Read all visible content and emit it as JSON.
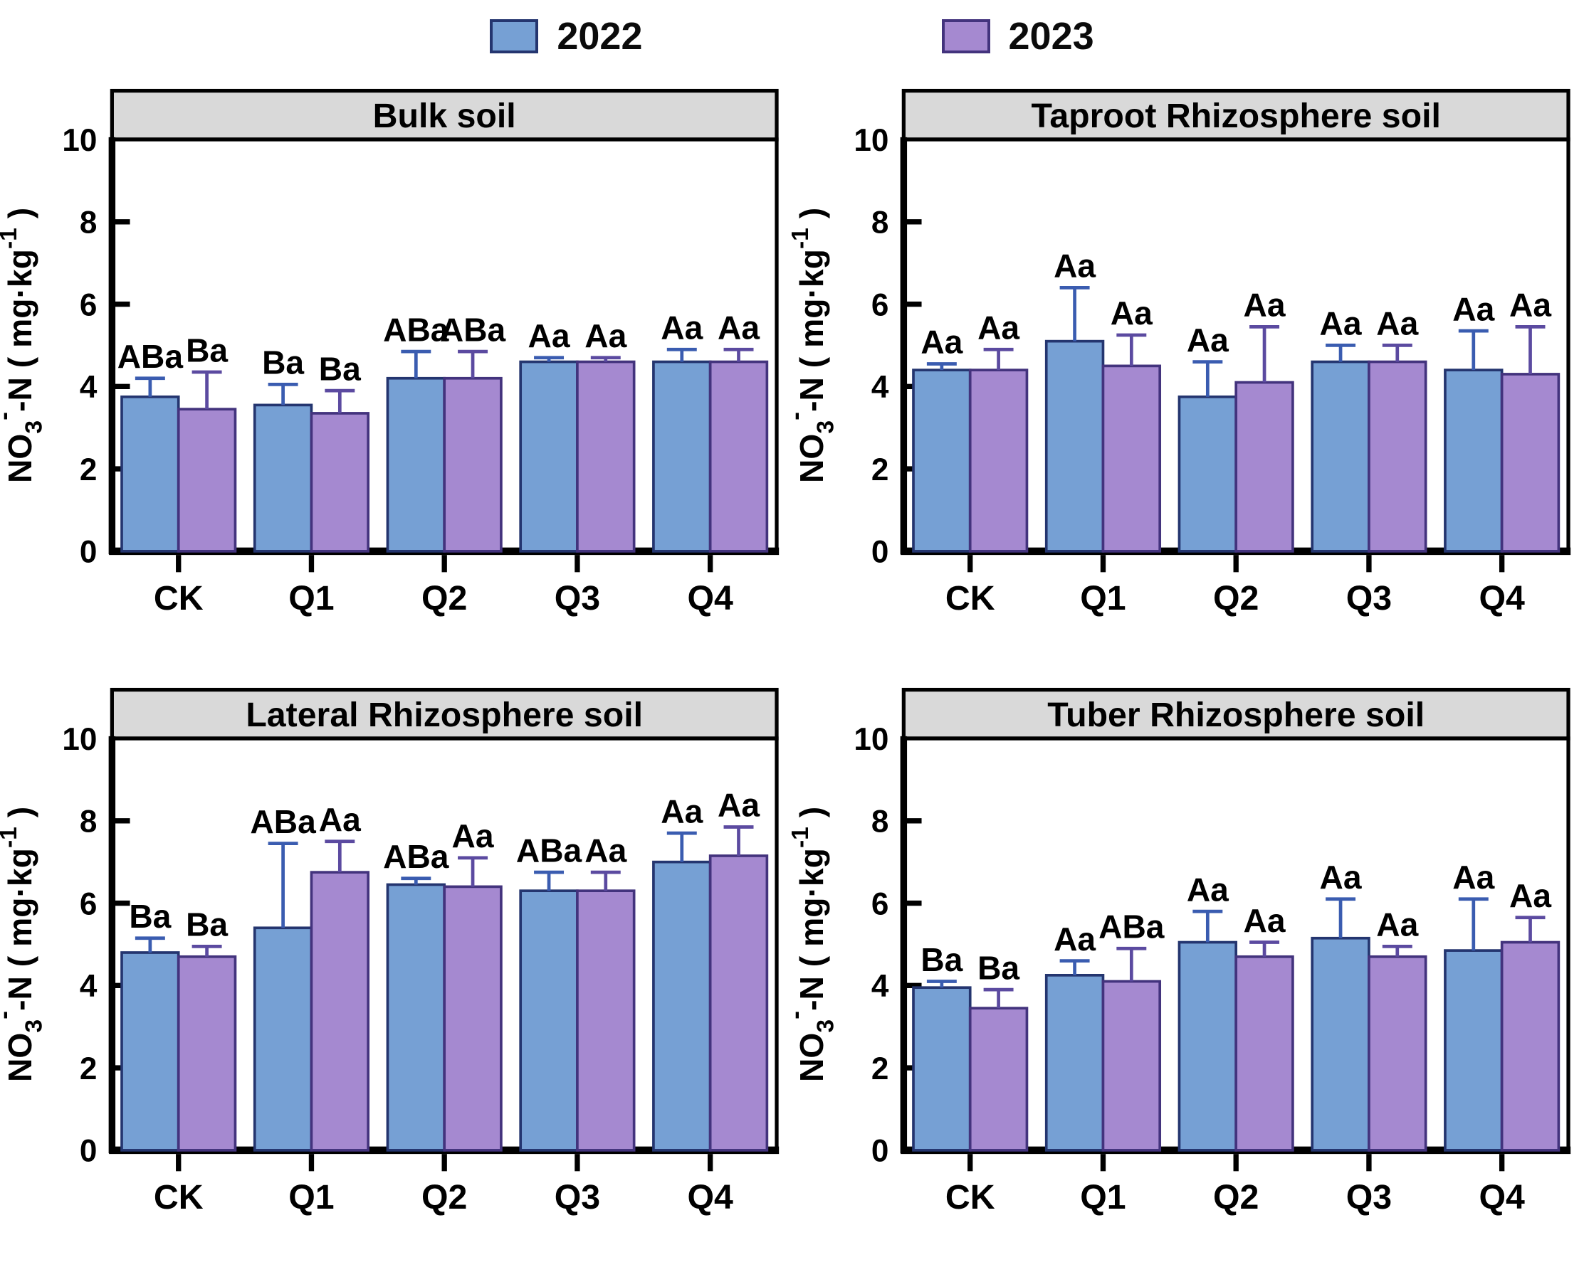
{
  "legend": {
    "items": [
      {
        "label": "2022",
        "color": "#76a0d4",
        "border": "#24356f"
      },
      {
        "label": "2023",
        "color": "#a589d0",
        "border": "#43337d"
      }
    ]
  },
  "style": {
    "bar_2022_fill": "#76a0d4",
    "bar_2022_stroke": "#24356f",
    "bar_2023_fill": "#a589d0",
    "bar_2023_stroke": "#43337d",
    "err_2022": "#3a5cb0",
    "err_2023": "#5b4aa0",
    "panel_strip_fill": "#d9d9d9",
    "frame_color": "#000000",
    "letter_color": "#0b0b0b"
  },
  "ylabel_parts": {
    "base1": "NO",
    "sub": "3",
    "sup1": "-",
    "base2": "-N ( mg·kg",
    "sup2": "-1",
    "base3": " )"
  },
  "chart_data": [
    {
      "type": "bar",
      "title": "Bulk soil",
      "categories": [
        "CK",
        "Q1",
        "Q2",
        "Q3",
        "Q4"
      ],
      "ylabel": "NO3(-)-N (mg·kg-1)",
      "ylim": [
        0,
        10
      ],
      "yticks": [
        0,
        2,
        4,
        6,
        8,
        10
      ],
      "legend_position": "top",
      "grid": false,
      "series": [
        {
          "name": "2022",
          "values": [
            3.75,
            3.55,
            4.2,
            4.6,
            4.6
          ],
          "err_top": [
            4.2,
            4.05,
            4.85,
            4.7,
            4.9
          ],
          "letters": [
            "ABa",
            "Ba",
            "ABa",
            "Aa",
            "Aa"
          ]
        },
        {
          "name": "2023",
          "values": [
            3.45,
            3.35,
            4.2,
            4.6,
            4.6
          ],
          "err_top": [
            4.35,
            3.9,
            4.85,
            4.7,
            4.9
          ],
          "letters": [
            "Ba",
            "Ba",
            "ABa",
            "Aa",
            "Aa"
          ]
        }
      ]
    },
    {
      "type": "bar",
      "title": "Taproot Rhizosphere soil",
      "categories": [
        "CK",
        "Q1",
        "Q2",
        "Q3",
        "Q4"
      ],
      "ylabel": "NO3(-)-N (mg·kg-1)",
      "ylim": [
        0,
        10
      ],
      "yticks": [
        0,
        2,
        4,
        6,
        8,
        10
      ],
      "legend_position": "top",
      "grid": false,
      "series": [
        {
          "name": "2022",
          "values": [
            4.4,
            5.1,
            3.75,
            4.6,
            4.4
          ],
          "err_top": [
            4.55,
            6.4,
            4.6,
            5.0,
            5.35
          ],
          "letters": [
            "Aa",
            "Aa",
            "Aa",
            "Aa",
            "Aa"
          ]
        },
        {
          "name": "2023",
          "values": [
            4.4,
            4.5,
            4.1,
            4.6,
            4.3
          ],
          "err_top": [
            4.9,
            5.25,
            5.45,
            5.0,
            5.45
          ],
          "letters": [
            "Aa",
            "Aa",
            "Aa",
            "Aa",
            "Aa"
          ]
        }
      ]
    },
    {
      "type": "bar",
      "title": "Lateral Rhizosphere soil",
      "categories": [
        "CK",
        "Q1",
        "Q2",
        "Q3",
        "Q4"
      ],
      "ylabel": "NO3(-)-N (mg·kg-1)",
      "ylim": [
        0,
        10
      ],
      "yticks": [
        0,
        2,
        4,
        6,
        8,
        10
      ],
      "legend_position": "top",
      "grid": false,
      "series": [
        {
          "name": "2022",
          "values": [
            4.8,
            5.4,
            6.45,
            6.3,
            7.0
          ],
          "err_top": [
            5.15,
            7.45,
            6.6,
            6.75,
            7.7
          ],
          "letters": [
            "Ba",
            "ABa",
            "ABa",
            "ABa",
            "Aa"
          ]
        },
        {
          "name": "2023",
          "values": [
            4.7,
            6.75,
            6.4,
            6.3,
            7.15
          ],
          "err_top": [
            4.95,
            7.5,
            7.1,
            6.75,
            7.85
          ],
          "letters": [
            "Ba",
            "Aa",
            "Aa",
            "Aa",
            "Aa"
          ]
        }
      ]
    },
    {
      "type": "bar",
      "title": "Tuber Rhizosphere soil",
      "categories": [
        "CK",
        "Q1",
        "Q2",
        "Q3",
        "Q4"
      ],
      "ylabel": "NO3(-)-N (mg·kg-1)",
      "ylim": [
        0,
        10
      ],
      "yticks": [
        0,
        2,
        4,
        6,
        8,
        10
      ],
      "legend_position": "top",
      "grid": false,
      "series": [
        {
          "name": "2022",
          "values": [
            3.95,
            4.25,
            5.05,
            5.15,
            4.85
          ],
          "err_top": [
            4.1,
            4.6,
            5.8,
            6.1,
            6.1
          ],
          "letters": [
            "Ba",
            "Aa",
            "Aa",
            "Aa",
            "Aa"
          ]
        },
        {
          "name": "2023",
          "values": [
            3.45,
            4.1,
            4.7,
            4.7,
            5.05
          ],
          "err_top": [
            3.9,
            4.9,
            5.05,
            4.95,
            5.65
          ],
          "letters": [
            "Ba",
            "ABa",
            "Aa",
            "Aa",
            "Aa"
          ]
        }
      ]
    }
  ]
}
